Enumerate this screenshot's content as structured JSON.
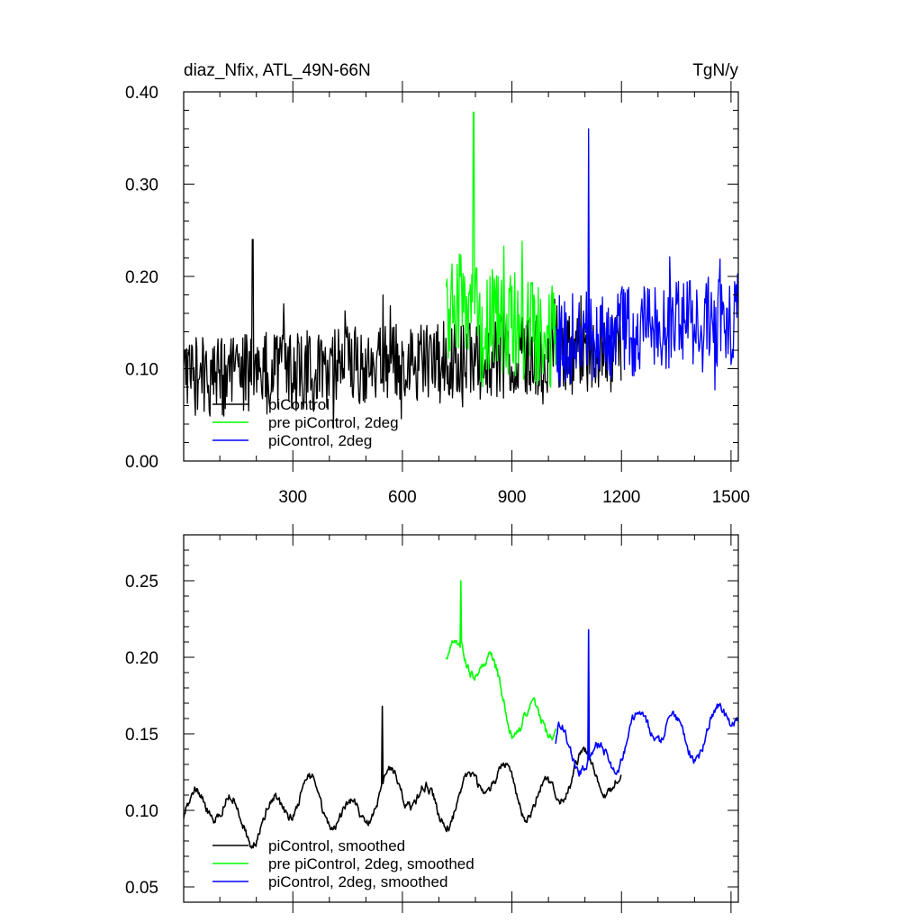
{
  "chart_data": [
    {
      "type": "line",
      "title": "diaz_Nfix, ATL_49N-66N",
      "units": "TgN/y",
      "xlim": [
        1,
        1520
      ],
      "ylim": [
        0.0,
        0.4
      ],
      "yticks": [
        0.0,
        0.1,
        0.2,
        0.3,
        0.4
      ],
      "ytick_labels": [
        "0.00",
        "0.10",
        "0.20",
        "0.30",
        "0.40"
      ],
      "xticks": [
        300,
        600,
        900,
        1200,
        1500
      ],
      "xtick_labels": [
        "300",
        "600",
        "900",
        "1200",
        "1500"
      ],
      "legend_position": "bottom-left",
      "series": [
        {
          "name": "piControl",
          "color": "#000000",
          "x_start": 1,
          "x_end": 1200,
          "base_start": 0.09,
          "base_end": 0.12,
          "amplitude": 0.045,
          "spike": {
            "x": 190,
            "value": 0.24
          }
        },
        {
          "name": "pre piControl, 2deg",
          "color": "#00ff00",
          "x_start": 720,
          "x_end": 1020,
          "base_start": 0.17,
          "base_end": 0.13,
          "amplitude": 0.06,
          "spike": {
            "x": 795,
            "value": 0.378
          }
        },
        {
          "name": "piControl, 2deg",
          "color": "#0000ff",
          "x_start": 1020,
          "x_end": 1520,
          "base_start": 0.13,
          "base_end": 0.155,
          "amplitude": 0.05,
          "spike": {
            "x": 1110,
            "value": 0.36
          }
        }
      ]
    },
    {
      "type": "line",
      "xlim": [
        1,
        1520
      ],
      "ylim": [
        0.04,
        0.28
      ],
      "yticks": [
        0.05,
        0.1,
        0.15,
        0.2,
        0.25
      ],
      "ytick_labels": [
        "0.05",
        "0.10",
        "0.15",
        "0.20",
        "0.25"
      ],
      "xticks": [
        300,
        600,
        900,
        1200,
        1500
      ],
      "legend_position": "bottom-left",
      "series": [
        {
          "name": "piControl, smoothed",
          "color": "#000000",
          "x_start": 1,
          "x_end": 1200,
          "base_start": 0.095,
          "base_end": 0.12,
          "amplitude": 0.022,
          "spike": {
            "x": 545,
            "value": 0.168
          }
        },
        {
          "name": "pre piControl, 2deg, smoothed",
          "color": "#00ff00",
          "x_start": 720,
          "x_end": 1020,
          "base_start": 0.2,
          "base_end": 0.155,
          "amplitude": 0.025,
          "spike": {
            "x": 760,
            "value": 0.25
          }
        },
        {
          "name": "piControl, 2deg, smoothed",
          "color": "#0000ff",
          "x_start": 1020,
          "x_end": 1520,
          "base_start": 0.135,
          "base_end": 0.16,
          "amplitude": 0.022,
          "spike": {
            "x": 1110,
            "value": 0.218
          }
        }
      ]
    }
  ]
}
